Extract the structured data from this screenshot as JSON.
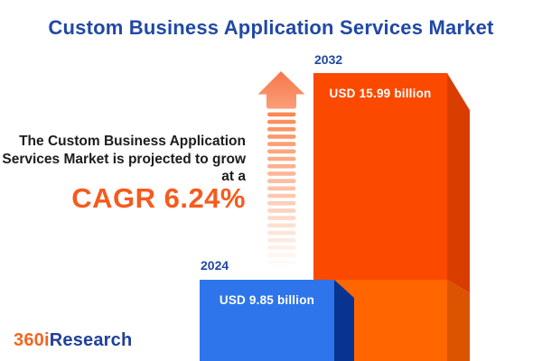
{
  "title": "Custom Business Application Services Market",
  "annotation": {
    "line1": "The Custom Business Application",
    "line2": "Services Market is projected to grow",
    "line3": "at a",
    "cagr": "CAGR 6.24%"
  },
  "bars": [
    {
      "year": "2024",
      "value_label": "USD 9.85 billion"
    },
    {
      "year": "2032",
      "value_label": "USD 15.99 billion"
    }
  ],
  "logo": {
    "prefix": "360i",
    "suffix": "Research"
  },
  "colors": {
    "title_blue": "#2148A6",
    "cagr_orange": "#F55B1D",
    "annotation_text": "#1D1C1A",
    "bar_2024_front": "#2E75EB",
    "bar_2024_side": "#093390",
    "bar_2032_front_top": "#FB4900",
    "bar_2032_side_top": "#D93E00",
    "bar_2032_front_bottom": "#FF6600",
    "bar_2032_side_bottom": "#DC5300",
    "arrow_salmon": "#F9834B",
    "value_text": "#FFFFFF",
    "logo_orange": "#F26522",
    "logo_blue": "#20409A",
    "background": "#FFFFFF"
  },
  "chart_data": {
    "type": "bar",
    "categories": [
      "2024",
      "2032"
    ],
    "values": [
      9.85,
      15.99
    ],
    "unit": "USD billion",
    "value_labels": [
      "USD 9.85 billion",
      "USD 15.99 billion"
    ],
    "title": "Custom Business Application Services Market",
    "annotation": "The Custom Business Application Services Market is projected to grow at a CAGR 6.24%",
    "cagr_percent": 6.24,
    "xlabel": "",
    "ylabel": "",
    "legend": "none",
    "grid": false,
    "style": "3d-infographic-bars"
  }
}
